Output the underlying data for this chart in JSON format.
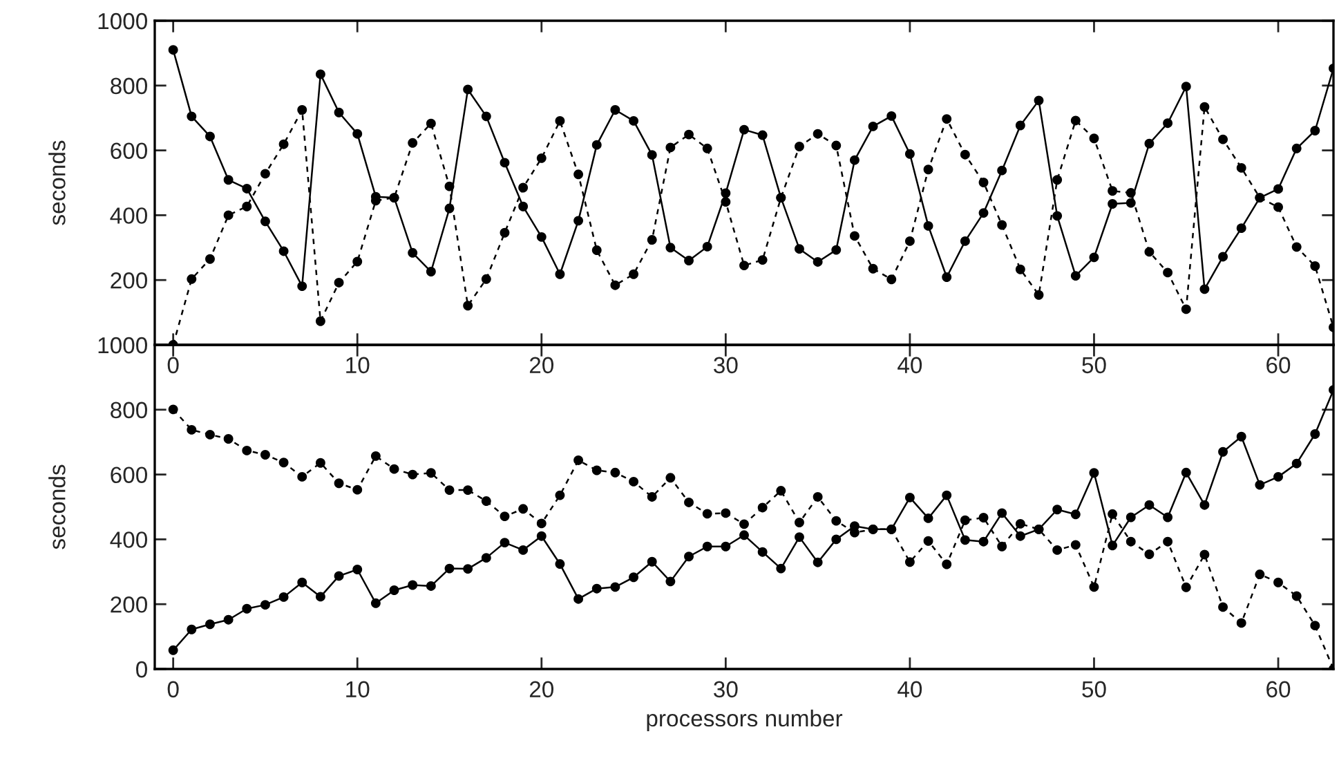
{
  "chart_data": [
    {
      "type": "line",
      "ylabel": "seconds",
      "x": [
        0,
        1,
        2,
        3,
        4,
        5,
        6,
        7,
        8,
        9,
        10,
        11,
        12,
        13,
        14,
        15,
        16,
        17,
        18,
        19,
        20,
        21,
        22,
        23,
        24,
        25,
        26,
        27,
        28,
        29,
        30,
        31,
        32,
        33,
        34,
        35,
        36,
        37,
        38,
        39,
        40,
        41,
        42,
        43,
        44,
        45,
        46,
        47,
        48,
        49,
        50,
        51,
        52,
        53,
        54,
        55,
        56,
        57,
        58,
        59,
        60,
        61,
        62,
        63
      ],
      "xlim": [
        -1,
        63
      ],
      "xticks": [
        0,
        10,
        20,
        30,
        40,
        50,
        60
      ],
      "ylim": [
        0,
        1000
      ],
      "yticks": [
        {
          "value": 0,
          "label": null
        },
        200,
        400,
        600,
        800,
        1000
      ],
      "marker": "circle",
      "series": [
        {
          "color": "#000000",
          "line_style": "solid",
          "values": [
            910,
            705,
            643,
            509,
            482,
            381,
            289,
            181,
            835,
            717,
            651,
            457,
            454,
            284,
            226,
            421,
            788,
            705,
            562,
            427,
            333,
            218,
            383,
            617,
            725,
            691,
            586,
            300,
            260,
            303,
            468,
            664,
            647,
            454,
            296,
            256,
            293,
            570,
            674,
            706,
            589,
            367,
            209,
            320,
            407,
            538,
            677,
            754,
            398,
            213,
            270,
            435,
            438,
            621,
            684,
            797,
            172,
            272,
            360,
            454,
            481,
            606,
            661,
            853
          ]
        },
        {
          "color": "#000000",
          "line_style": "dashed",
          "values": [
            0,
            203,
            265,
            400,
            427,
            528,
            619,
            725,
            73,
            192,
            257,
            445,
            454,
            623,
            683,
            489,
            121,
            203,
            346,
            485,
            576,
            691,
            526,
            292,
            184,
            218,
            324,
            609,
            649,
            606,
            441,
            245,
            262,
            454,
            612,
            651,
            615,
            336,
            235,
            202,
            320,
            541,
            697,
            587,
            501,
            370,
            233,
            154,
            509,
            692,
            637,
            475,
            469,
            287,
            223,
            110,
            734,
            634,
            546,
            454,
            425,
            302,
            243,
            54
          ]
        }
      ]
    },
    {
      "type": "line",
      "xlabel": "processors number",
      "ylabel": "seconds",
      "x": [
        0,
        1,
        2,
        3,
        4,
        5,
        6,
        7,
        8,
        9,
        10,
        11,
        12,
        13,
        14,
        15,
        16,
        17,
        18,
        19,
        20,
        21,
        22,
        23,
        24,
        25,
        26,
        27,
        28,
        29,
        30,
        31,
        32,
        33,
        34,
        35,
        36,
        37,
        38,
        39,
        40,
        41,
        42,
        43,
        44,
        45,
        46,
        47,
        48,
        49,
        50,
        51,
        52,
        53,
        54,
        55,
        56,
        57,
        58,
        59,
        60,
        61,
        62,
        63
      ],
      "xlim": [
        -1,
        63
      ],
      "xticks": [
        0,
        10,
        20,
        30,
        40,
        50,
        60
      ],
      "ylim": [
        0,
        1000
      ],
      "yticks": [
        0,
        200,
        400,
        600,
        800,
        1000
      ],
      "marker": "circle",
      "series": [
        {
          "color": "#000000",
          "line_style": "solid",
          "values": [
            58,
            122,
            138,
            152,
            186,
            198,
            222,
            267,
            223,
            287,
            307,
            203,
            243,
            259,
            256,
            310,
            309,
            343,
            390,
            367,
            410,
            324,
            216,
            248,
            253,
            283,
            331,
            270,
            347,
            378,
            378,
            413,
            361,
            310,
            407,
            329,
            400,
            441,
            431,
            431,
            529,
            465,
            536,
            398,
            393,
            481,
            410,
            431,
            492,
            477,
            605,
            381,
            468,
            506,
            468,
            606,
            506,
            670,
            717,
            568,
            593,
            634,
            725,
            861
          ]
        },
        {
          "color": "#000000",
          "line_style": "dashed",
          "values": [
            801,
            738,
            723,
            710,
            674,
            661,
            637,
            593,
            636,
            573,
            553,
            657,
            617,
            600,
            605,
            552,
            552,
            518,
            471,
            494,
            449,
            536,
            644,
            613,
            606,
            578,
            531,
            590,
            514,
            479,
            481,
            447,
            498,
            550,
            452,
            531,
            457,
            421,
            431,
            431,
            330,
            395,
            323,
            459,
            467,
            378,
            448,
            431,
            367,
            383,
            253,
            478,
            393,
            354,
            393,
            252,
            353,
            191,
            142,
            292,
            267,
            225,
            134,
            0
          ]
        }
      ]
    }
  ]
}
